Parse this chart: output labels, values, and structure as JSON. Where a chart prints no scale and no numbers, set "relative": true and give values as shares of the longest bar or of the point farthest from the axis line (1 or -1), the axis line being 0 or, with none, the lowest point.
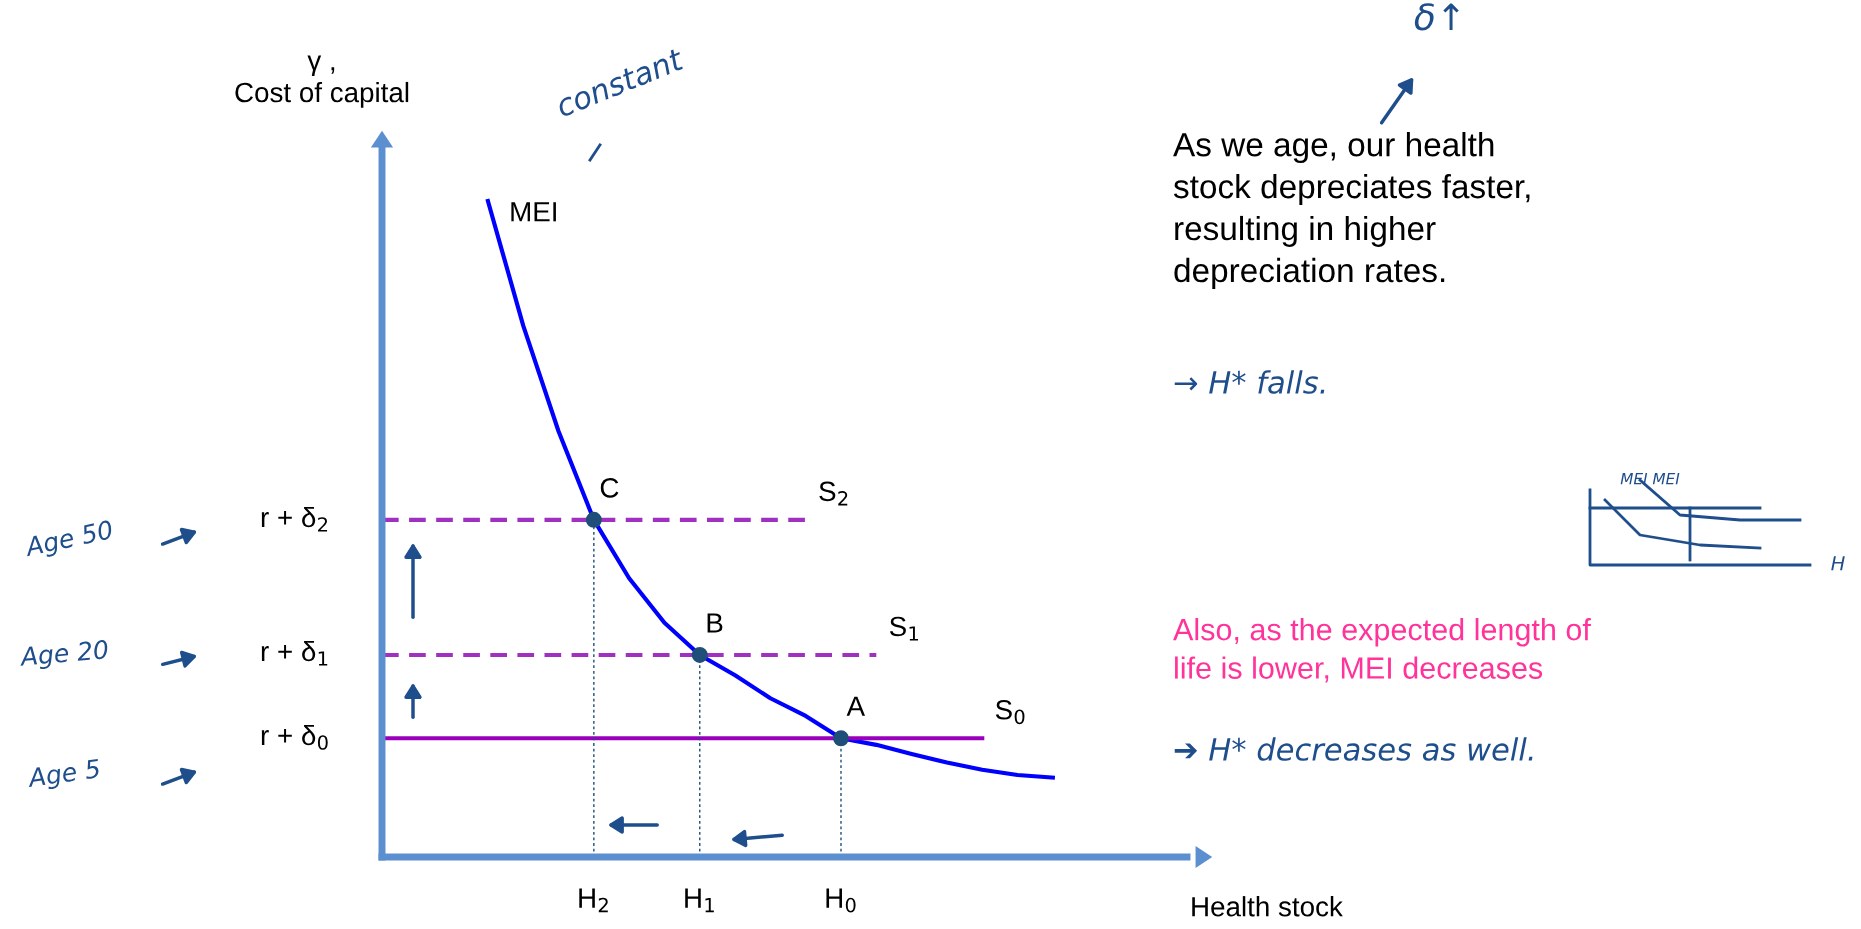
{
  "chart_data": {
    "type": "line",
    "relative": true,
    "ylabel": "γ ,\nCost of capital",
    "xlabel": "Health stock",
    "categories": [
      null,
      null,
      null,
      null,
      null,
      null,
      "H$_{2}$",
      null,
      null,
      "H$_{1}$",
      null,
      null,
      null,
      "H$_{0}$",
      null,
      null,
      null,
      null,
      null,
      null
    ],
    "series": [
      {
        "name": "MEI",
        "color": "#0000ff",
        "line_style": "solid",
        "values": [
          null,
          null,
          null,
          1.0,
          0.81,
          0.649,
          0.514,
          0.425,
          0.357,
          0.308,
          0.277,
          0.242,
          0.215,
          0.181,
          0.171,
          0.157,
          0.144,
          0.133,
          0.125,
          0.121
        ]
      },
      {
        "name": "S$_{2}$",
        "color": "#a030c0",
        "line_style": "dashed",
        "values": [
          0.514,
          0.514,
          0.514,
          0.514,
          0.514,
          0.514,
          0.514,
          0.514,
          0.514,
          0.514,
          0.514,
          0.514,
          0.514,
          null,
          null,
          null,
          null,
          null,
          null,
          null
        ]
      },
      {
        "name": "S$_{1}$",
        "color": "#a030c0",
        "line_style": "dashed",
        "values": [
          0.308,
          0.308,
          0.308,
          0.308,
          0.308,
          0.308,
          0.308,
          0.308,
          0.308,
          0.308,
          0.308,
          0.308,
          0.308,
          0.308,
          0.308,
          null,
          null,
          null,
          null,
          null
        ]
      },
      {
        "name": "S$_{0}$",
        "color": "#9900bb",
        "line_style": "solid",
        "values": [
          0.181,
          0.181,
          0.181,
          0.181,
          0.181,
          0.181,
          0.181,
          0.181,
          0.181,
          0.181,
          0.181,
          0.181,
          0.181,
          0.181,
          0.181,
          0.181,
          0.181,
          0.181,
          null,
          null
        ]
      },
      {
        "type": "lollipop",
        "color": "#1f4e79",
        "marker": "circle",
        "line_style": "dotted",
        "values": [
          null,
          null,
          null,
          null,
          null,
          null,
          0.514,
          null,
          null,
          0.308,
          null,
          null,
          null,
          0.181,
          null,
          null,
          null,
          null,
          null,
          null
        ]
      }
    ],
    "annotations": [
      "constant",
      "δ↑",
      "As we age, our health\nstock depreciates faster,\nresulting in higher\ndepreciation rates.",
      "→ H* falls.",
      "Also, as the expected length of\nlife is lower, MEI decreases",
      "➔ H* decreases as well.",
      "Age 50",
      "Age 20",
      "Age 5",
      "MEI MEI",
      "H",
      "r + δ$_{2}$",
      "r + δ$_{1}$",
      "r + δ$_{0}$",
      {
        "text": "A",
        "x": "H$_{0}$",
        "y": 0.181
      },
      {
        "text": "B",
        "x": "H$_{1}$",
        "y": 0.308
      },
      {
        "text": "C",
        "x": "H$_{2}$",
        "y": 0.514
      }
    ]
  }
}
